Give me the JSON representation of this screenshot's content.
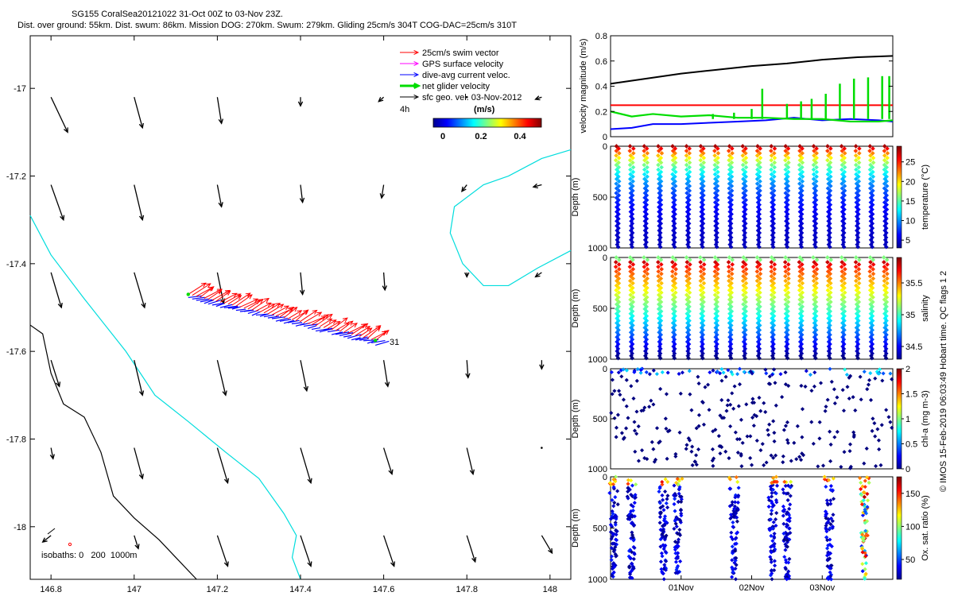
{
  "title": {
    "line1": "SG155 CoralSea20121022 31-Oct 00Z to 03-Nov 23Z.",
    "line2": "Dist. over ground: 55km. Dist. swum: 86km. Mission DOG: 270km. Swum: 279km. Gliding 25cm/s 304T COG-DAC=25cm/s 310T"
  },
  "side_label": "© IMOS 15-Feb-2019 06:03:49 Hobart time. QC flags 1  2",
  "colors": {
    "swim": "#ff0000",
    "gps": "#ff00ff",
    "dac": "#0000ff",
    "net": "#00dd00",
    "sfc": "#000000",
    "coast": "#00dddd",
    "iso": "#000000"
  },
  "chart_data": [
    {
      "id": "map",
      "type": "scatter",
      "xlim": [
        146.75,
        148.05
      ],
      "ylim": [
        -18.12,
        -16.88
      ],
      "x_ticks": [
        146.8,
        147,
        147.2,
        147.4,
        147.6,
        147.8,
        148
      ],
      "x_tick_labels": [
        "146.8",
        "147",
        "147.2",
        "147.4",
        "147.6",
        "147.8",
        "148"
      ],
      "y_ticks": [
        -17,
        -17.2,
        -17.4,
        -17.6,
        -17.8,
        -18
      ],
      "y_tick_labels": [
        "-17",
        "-17.2",
        "-17.4",
        "-17.6",
        "-17.8",
        "-18"
      ],
      "legend": [
        {
          "label": "25cm/s swim vector",
          "color": "#ff0000"
        },
        {
          "label": "GPS surface velocity",
          "color": "#ff00ff"
        },
        {
          "label": "dive-avg current veloc.",
          "color": "#0000ff"
        },
        {
          "label": "net glider velocity",
          "color": "#00dd00"
        },
        {
          "label": "sfc geo. vel. 03-Nov-2012",
          "color": "#000000"
        }
      ],
      "annotation_4h": "4h",
      "colorbar": {
        "label": "(m/s)",
        "ticks": [
          "0",
          "0.2",
          "0.4"
        ],
        "range": [
          0,
          0.5
        ]
      },
      "track_end_label": "31",
      "isobath_text": "isobaths: 0   200  1000m",
      "track": {
        "start": [
          147.13,
          -17.47
        ],
        "end": [
          147.58,
          -17.575
        ]
      },
      "current_lons": [
        146.8,
        147,
        147.2,
        147.4,
        147.6,
        147.8,
        147.98
      ],
      "current_lats": [
        -17.02,
        -17.22,
        -17.42,
        -17.62,
        -17.82,
        -18.02
      ],
      "current_vectors": [
        [
          [
            0.04,
            -0.08
          ],
          [
            0.02,
            -0.07
          ],
          [
            0.01,
            -0.06
          ],
          [
            0,
            -0.02
          ],
          [
            -0.012,
            -0.01
          ],
          [
            0,
            0
          ],
          [
            -0.015,
            -0.005
          ]
        ],
        [
          [
            0.03,
            -0.08
          ],
          [
            0.02,
            -0.08
          ],
          [
            0.01,
            -0.05
          ],
          [
            0.005,
            -0.04
          ],
          [
            -0.005,
            -0.03
          ],
          [
            -0.012,
            -0.015
          ],
          [
            -0.02,
            -0.005
          ]
        ],
        [
          [
            0.025,
            -0.08
          ],
          [
            0.025,
            -0.08
          ],
          [
            0.015,
            -0.07
          ],
          [
            0.005,
            -0.05
          ],
          [
            0.003,
            -0.04
          ],
          [
            0,
            -0.01
          ],
          [
            -0.015,
            -0.01
          ]
        ],
        [
          [
            0.02,
            -0.06
          ],
          [
            0.02,
            -0.08
          ],
          [
            0.02,
            -0.08
          ],
          [
            0.015,
            -0.07
          ],
          [
            0.01,
            -0.06
          ],
          [
            0.003,
            -0.04
          ],
          [
            0,
            -0.02
          ]
        ],
        [
          [
            0.005,
            -0.025
          ],
          [
            0.02,
            -0.07
          ],
          [
            0.025,
            -0.08
          ],
          [
            0.025,
            -0.08
          ],
          [
            0.02,
            -0.06
          ],
          [
            0.015,
            -0.06
          ],
          [
            0,
            0
          ]
        ],
        [
          [
            -0.02,
            -0.015
          ],
          [
            0.01,
            -0.03
          ],
          [
            0.025,
            -0.07
          ],
          [
            0.025,
            -0.07
          ],
          [
            0.025,
            -0.07
          ],
          [
            0.02,
            -0.06
          ],
          [
            0.025,
            -0.04
          ]
        ]
      ],
      "coast_cyan": [
        [
          146.75,
          -17.29
        ],
        [
          146.8,
          -17.38
        ],
        [
          146.88,
          -17.48
        ],
        [
          146.98,
          -17.6
        ],
        [
          147.05,
          -17.7
        ],
        [
          147.13,
          -17.76
        ],
        [
          147.22,
          -17.83
        ],
        [
          147.3,
          -17.89
        ],
        [
          147.36,
          -17.97
        ],
        [
          147.39,
          -18.02
        ],
        [
          147.38,
          -18.07
        ],
        [
          147.4,
          -18.12
        ]
      ],
      "coast_cyan_east": [
        [
          148.05,
          -17.14
        ],
        [
          147.98,
          -17.16
        ],
        [
          147.9,
          -17.2
        ],
        [
          147.84,
          -17.22
        ],
        [
          147.77,
          -17.27
        ],
        [
          147.76,
          -17.33
        ],
        [
          147.79,
          -17.4
        ],
        [
          147.84,
          -17.45
        ],
        [
          147.9,
          -17.45
        ],
        [
          147.97,
          -17.41
        ],
        [
          148.05,
          -17.37
        ]
      ],
      "isobath_black": [
        [
          146.75,
          -17.54
        ],
        [
          146.78,
          -17.56
        ],
        [
          146.8,
          -17.65
        ],
        [
          146.83,
          -17.72
        ],
        [
          146.88,
          -17.75
        ],
        [
          146.92,
          -17.83
        ],
        [
          146.95,
          -17.93
        ],
        [
          147,
          -17.98
        ],
        [
          147.06,
          -18.03
        ],
        [
          147.1,
          -18.07
        ],
        [
          147.15,
          -18.12
        ]
      ]
    },
    {
      "id": "velocity",
      "type": "line",
      "ylabel": "velocity magnitude (m/s)",
      "ylim": [
        0,
        0.8
      ],
      "y_ticks": [
        0,
        0.2,
        0.4,
        0.6,
        0.8
      ],
      "y_tick_labels": [
        "0",
        "0.2",
        "0.4",
        "0.6",
        "0.8"
      ],
      "x_days": [
        0,
        4
      ],
      "series": [
        {
          "key": "dog",
          "color": "#000000",
          "x": [
            0,
            0.5,
            1,
            1.5,
            2,
            2.5,
            3,
            3.5,
            4
          ],
          "values": [
            0.42,
            0.46,
            0.5,
            0.53,
            0.56,
            0.58,
            0.61,
            0.63,
            0.64
          ]
        },
        {
          "key": "swim",
          "color": "#ff0000",
          "x": [
            0,
            4
          ],
          "values": [
            0.25,
            0.25
          ]
        },
        {
          "key": "dac",
          "color": "#0000ff",
          "x": [
            0,
            0.3,
            0.6,
            1,
            1.4,
            1.8,
            2.2,
            2.6,
            3,
            3.4,
            3.8,
            4
          ],
          "values": [
            0.06,
            0.07,
            0.1,
            0.1,
            0.11,
            0.12,
            0.13,
            0.15,
            0.13,
            0.14,
            0.13,
            0.12
          ]
        },
        {
          "key": "net",
          "color": "#00dd00",
          "x": [
            0,
            0.3,
            0.6,
            1,
            1.4,
            1.8,
            2.2,
            2.6,
            3,
            3.4,
            3.8,
            4
          ],
          "values": [
            0.2,
            0.16,
            0.18,
            0.16,
            0.17,
            0.15,
            0.15,
            0.14,
            0.14,
            0.12,
            0.12,
            0.13
          ]
        }
      ],
      "net_spikes": [
        [
          1.45,
          0.18
        ],
        [
          1.75,
          0.19
        ],
        [
          2.0,
          0.22
        ],
        [
          2.15,
          0.38
        ],
        [
          2.5,
          0.26
        ],
        [
          2.7,
          0.28
        ],
        [
          2.85,
          0.3
        ],
        [
          3.05,
          0.34
        ],
        [
          3.25,
          0.42
        ],
        [
          3.45,
          0.46
        ],
        [
          3.65,
          0.47
        ],
        [
          3.85,
          0.48
        ],
        [
          3.95,
          0.48
        ]
      ]
    },
    {
      "id": "temperature",
      "type": "scatter",
      "ylabel": "Depth (m)",
      "ylim": [
        1000,
        0
      ],
      "y_ticks": [
        0,
        500,
        1000
      ],
      "y_tick_labels": [
        "0",
        "500",
        "1000"
      ],
      "colorbar": {
        "label": "temperature (°C)",
        "ticks": [
          "5",
          "10",
          "15",
          "20",
          "25"
        ],
        "range": [
          3,
          29
        ]
      },
      "dives": [
        0.1,
        0.3,
        0.5,
        0.7,
        0.9,
        1.1,
        1.3,
        1.5,
        1.7,
        1.9,
        2.1,
        2.3,
        2.5,
        2.7,
        2.9,
        3.1,
        3.3,
        3.5,
        3.7,
        3.9
      ]
    },
    {
      "id": "salinity",
      "type": "scatter",
      "ylabel": "Depth (m)",
      "ylim": [
        1000,
        0
      ],
      "y_ticks": [
        0,
        500,
        1000
      ],
      "y_tick_labels": [
        "0",
        "500",
        "1000"
      ],
      "colorbar": {
        "label": "salinity",
        "ticks": [
          "34.5",
          "35",
          "35.5"
        ],
        "range": [
          34.3,
          35.9
        ]
      },
      "dives": [
        0.1,
        0.3,
        0.5,
        0.7,
        0.9,
        1.1,
        1.3,
        1.5,
        1.7,
        1.9,
        2.1,
        2.3,
        2.5,
        2.7,
        2.9,
        3.1,
        3.3,
        3.5,
        3.7,
        3.9
      ]
    },
    {
      "id": "chla",
      "type": "scatter",
      "ylabel": "Depth (m)",
      "ylim": [
        1000,
        0
      ],
      "y_ticks": [
        0,
        500,
        1000
      ],
      "y_tick_labels": [
        "0",
        "500",
        "1000"
      ],
      "colorbar": {
        "label": "chl-a (mg m-3)",
        "ticks": [
          "0",
          "0.5",
          "1",
          "1.5",
          "2"
        ],
        "range": [
          0,
          2
        ]
      }
    },
    {
      "id": "oxygen",
      "type": "scatter",
      "ylabel": "Depth (m)",
      "ylim": [
        1000,
        0
      ],
      "y_ticks": [
        0,
        500,
        1000
      ],
      "y_tick_labels": [
        "0",
        "500",
        "1000"
      ],
      "x_ticks": [
        1,
        2,
        3
      ],
      "x_tick_labels": [
        "01Nov",
        "02Nov",
        "03Nov"
      ],
      "colorbar": {
        "label": "Ox. sat. ratio (%)",
        "ticks": [
          "50",
          "100",
          "150"
        ],
        "range": [
          20,
          175
        ]
      },
      "clusters": [
        0.05,
        0.3,
        0.75,
        0.95,
        1.75,
        2.3,
        2.5,
        3.1,
        3.6
      ]
    }
  ]
}
